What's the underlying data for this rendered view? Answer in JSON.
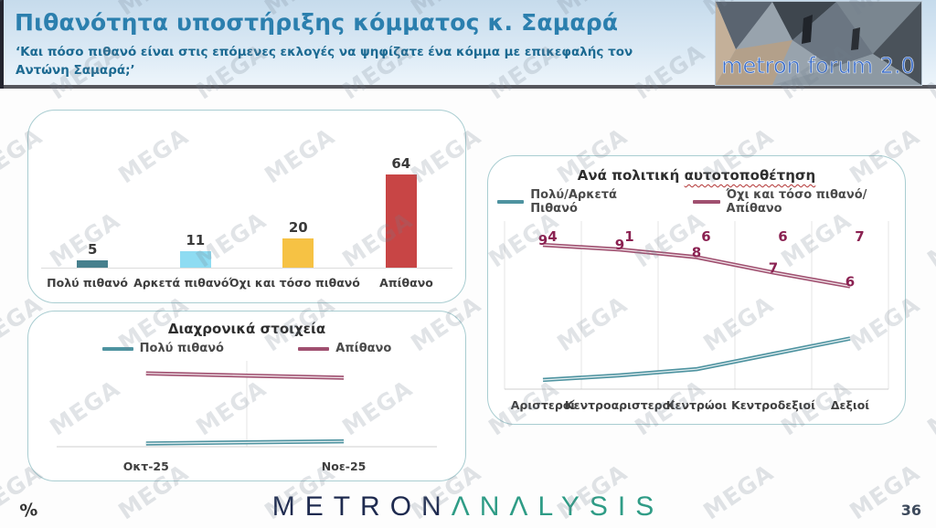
{
  "watermark": {
    "text": "MEGA"
  },
  "header": {
    "title": "Πιθανότητα υποστήριξης κόμματος κ. Σαμαρά",
    "subtitle": "‘Και πόσο πιθανό είναι στις επόμενες εκλογές να ψηφίζατε ένα κόμμα με επικεφαλής τον Αντώνη Σαμαρά;’",
    "logo_text": "metron forum 2.0"
  },
  "footer": {
    "brand_part1": "METRON",
    "brand_part2": "ΛNΛLYSIS",
    "percent_label": "%",
    "page_number": "36"
  },
  "chart_data": [
    {
      "id": "support-likelihood",
      "type": "bar",
      "title": "",
      "categories": [
        "Πολύ πιθανό",
        "Αρκετά πιθανό",
        "Όχι και τόσο πιθανό",
        "Απίθανο"
      ],
      "values": [
        5,
        11,
        20,
        64
      ],
      "bar_colors": [
        "#47808d",
        "#8edcf2",
        "#f6c244",
        "#c84545"
      ],
      "ylim": [
        0,
        70
      ],
      "grid": false,
      "legend_position": "none"
    },
    {
      "id": "trend-over-time",
      "type": "line",
      "title": "Διαχρονικά στοιχεία",
      "categories": [
        "Οκτ-25",
        "Νοε-25"
      ],
      "series": [
        {
          "name": "Πολύ πιθανό",
          "values": [
            3,
            5
          ],
          "color": "#4e93a0",
          "label_color": "#1e6672"
        },
        {
          "name": "Απίθανο",
          "values": [
            68,
            64
          ],
          "color": "#a05070",
          "label_color": "#8b2252"
        }
      ],
      "ylim": [
        0,
        100
      ],
      "grid": true,
      "legend_position": "top"
    },
    {
      "id": "by-political-self-placement",
      "type": "line",
      "title": "Ανά πολιτική αυτοτοποθέτηση",
      "title_plain": "Ανά πολιτική",
      "title_underlined": "αυτοτοποθέτηση",
      "categories": [
        "Αριστεροί",
        "Κεντροαριστεροί",
        "Κεντρώοι",
        "Κεντροδεξιοί",
        "Δεξιοί"
      ],
      "series": [
        {
          "name": "Πολύ/Αρκετά Πιθανό",
          "values": [
            6,
            9,
            13,
            23,
            33
          ],
          "color": "#4e93a0",
          "label_color": "#1e6672"
        },
        {
          "name": "Όχι και τόσο πιθανό/Απίθανο",
          "values": [
            94,
            91,
            86,
            76,
            67
          ],
          "color": "#a05070",
          "label_color": "#8b2252"
        }
      ],
      "ylim": [
        0,
        100
      ],
      "grid": true,
      "legend_position": "top"
    }
  ]
}
